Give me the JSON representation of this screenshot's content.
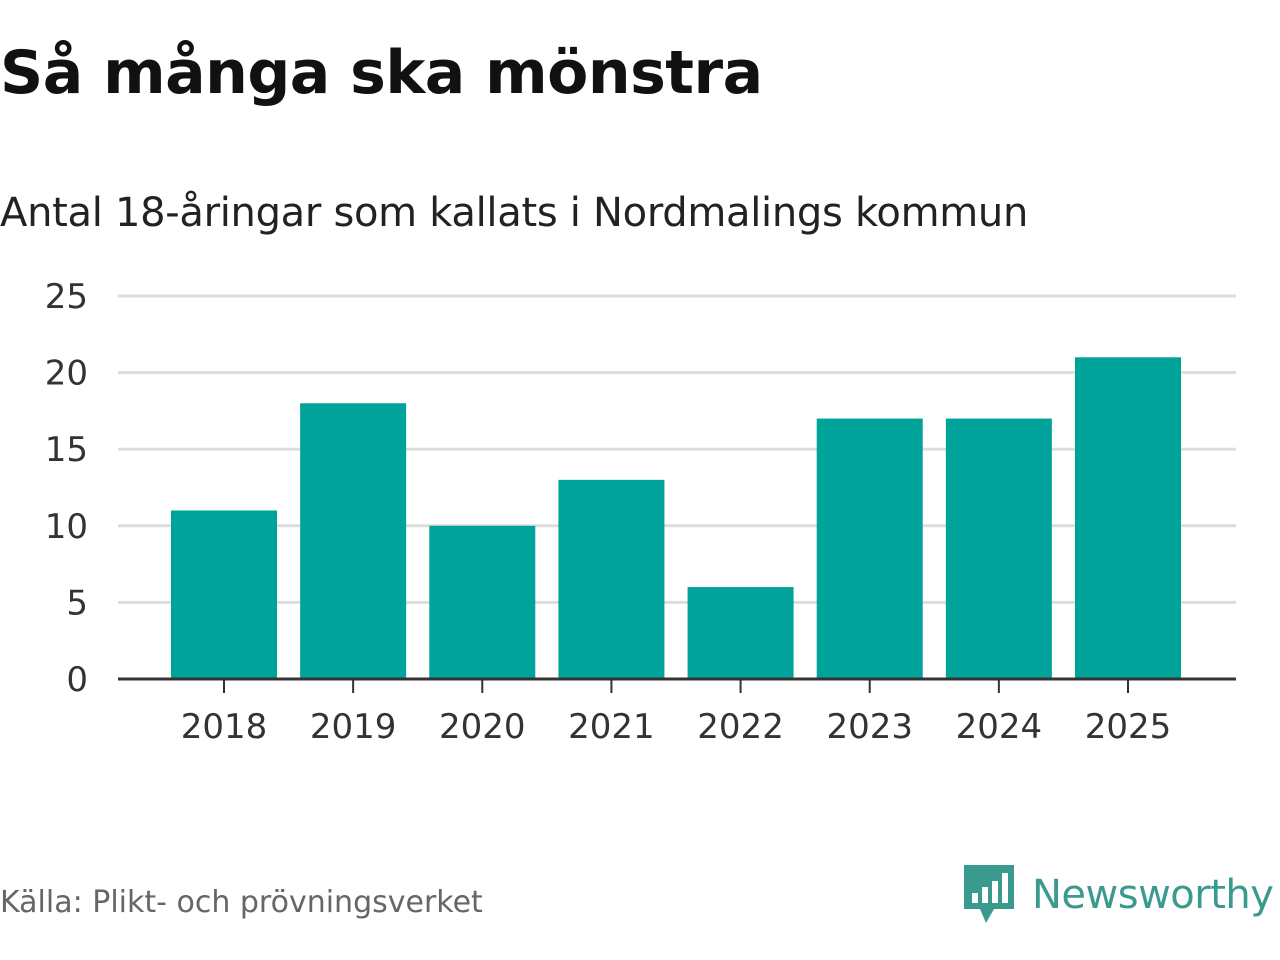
{
  "header": {
    "title": "Så många ska mönstra",
    "subtitle": "Antal 18-åringar som kallats i Nordmalings kommun"
  },
  "footer": {
    "source": "Källa: Plikt- och prövningsverket",
    "brand": "Newsworthy"
  },
  "colors": {
    "bar": "#00a39a",
    "grid": "#dddddd",
    "axis": "#333333",
    "brand": "#3a9a8e"
  },
  "chart_data": {
    "type": "bar",
    "title": "Så många ska mönstra",
    "subtitle": "Antal 18-åringar som kallats i Nordmalings kommun",
    "xlabel": "",
    "ylabel": "",
    "categories": [
      "2018",
      "2019",
      "2020",
      "2021",
      "2022",
      "2023",
      "2024",
      "2025"
    ],
    "values": [
      11,
      18,
      10,
      13,
      6,
      17,
      17,
      21
    ],
    "ylim": [
      0,
      25
    ],
    "yticks": [
      0,
      5,
      10,
      15,
      20,
      25
    ],
    "grid": true,
    "legend": "none"
  }
}
